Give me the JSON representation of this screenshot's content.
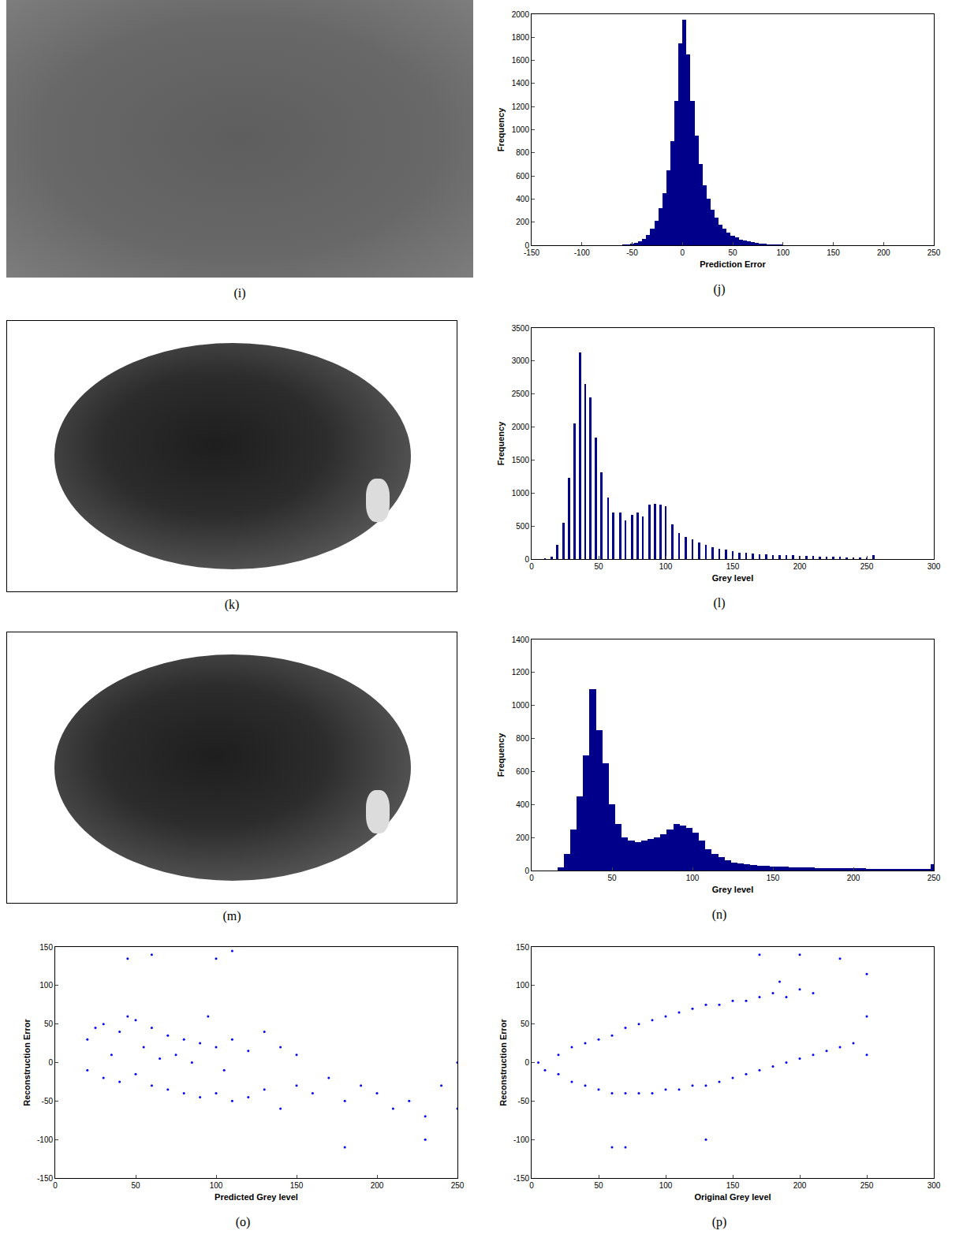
{
  "chart_data": [
    {
      "type": "image",
      "caption": "(i)"
    },
    {
      "type": "histogram",
      "caption": "(j)",
      "x_label": "Prediction Error",
      "y_label": "Frequency",
      "bins": [
        -60,
        -56,
        -52,
        -48,
        -44,
        -40,
        -36,
        -32,
        -28,
        -24,
        -20,
        -16,
        -12,
        -8,
        -4,
        0,
        4,
        8,
        12,
        16,
        20,
        24,
        28,
        32,
        36,
        40,
        44,
        48,
        52,
        56,
        60,
        64,
        68,
        72,
        76,
        80,
        84,
        88,
        92,
        96,
        100
      ],
      "values": [
        5,
        8,
        12,
        20,
        35,
        55,
        90,
        140,
        210,
        320,
        450,
        650,
        900,
        1250,
        1750,
        1950,
        1650,
        1250,
        950,
        700,
        520,
        400,
        310,
        240,
        180,
        140,
        110,
        85,
        65,
        50,
        40,
        32,
        25,
        20,
        15,
        12,
        10,
        8,
        6,
        5
      ],
      "color": "#00008b",
      "xlim": [
        -150,
        250
      ],
      "xticks": [
        -150,
        -100,
        -50,
        0,
        50,
        100,
        150,
        200,
        250
      ],
      "ylim": [
        0,
        2000
      ],
      "yticks": [
        0,
        200,
        400,
        600,
        800,
        1000,
        1200,
        1400,
        1600,
        1800,
        2000
      ],
      "grid": false
    },
    {
      "type": "image",
      "caption": "(k)"
    },
    {
      "type": "bar",
      "caption": "(l)",
      "x_label": "Grey level",
      "y_label": "Frequency",
      "x": [
        10,
        15,
        19,
        24,
        28,
        32,
        36,
        40,
        44,
        48,
        52,
        57,
        61,
        66,
        70,
        75,
        79,
        83,
        88,
        92,
        96,
        100,
        105,
        110,
        115,
        120,
        125,
        130,
        135,
        140,
        145,
        150,
        155,
        160,
        165,
        170,
        175,
        180,
        185,
        190,
        195,
        200,
        205,
        210,
        215,
        220,
        225,
        230,
        235,
        240,
        245,
        250,
        255
      ],
      "values": [
        10,
        30,
        220,
        550,
        1230,
        2050,
        3130,
        2650,
        2450,
        1840,
        1320,
        930,
        700,
        700,
        590,
        670,
        700,
        640,
        830,
        840,
        830,
        800,
        530,
        400,
        330,
        300,
        250,
        210,
        180,
        160,
        140,
        120,
        100,
        90,
        80,
        70,
        70,
        60,
        60,
        55,
        55,
        50,
        50,
        45,
        40,
        35,
        30,
        30,
        25,
        25,
        20,
        20,
        60
      ],
      "color": "#00008b",
      "xlim": [
        0,
        300
      ],
      "xticks": [
        0,
        50,
        100,
        150,
        200,
        250,
        300
      ],
      "ylim": [
        0,
        3500
      ],
      "yticks": [
        0,
        500,
        1000,
        1500,
        2000,
        2500,
        3000,
        3500
      ],
      "grid": false
    },
    {
      "type": "image",
      "caption": "(m)"
    },
    {
      "type": "histogram",
      "caption": "(n)",
      "x_label": "Grey level",
      "y_label": "Frequency",
      "bins": [
        16,
        20,
        24,
        28,
        32,
        36,
        40,
        44,
        48,
        52,
        56,
        60,
        64,
        68,
        72,
        76,
        80,
        84,
        88,
        92,
        96,
        100,
        104,
        108,
        112,
        116,
        120,
        124,
        128,
        132,
        136,
        140,
        144,
        148,
        152,
        156,
        160,
        164,
        168,
        172,
        176,
        180,
        184,
        188,
        192,
        196,
        200,
        204,
        208,
        212,
        216,
        220,
        224,
        228,
        232,
        236,
        240,
        244,
        248,
        252
      ],
      "values": [
        20,
        100,
        250,
        450,
        700,
        1100,
        850,
        650,
        400,
        280,
        200,
        180,
        170,
        180,
        190,
        200,
        220,
        250,
        280,
        270,
        260,
        230,
        180,
        130,
        100,
        80,
        60,
        50,
        45,
        40,
        35,
        30,
        30,
        25,
        25,
        22,
        20,
        20,
        18,
        18,
        16,
        15,
        15,
        14,
        14,
        13,
        12,
        12,
        11,
        11,
        10,
        10,
        10,
        9,
        9,
        9,
        8,
        8,
        40
      ],
      "color": "#00008b",
      "xlim": [
        0,
        250
      ],
      "xticks": [
        0,
        50,
        100,
        150,
        200,
        250
      ],
      "ylim": [
        0,
        1400
      ],
      "yticks": [
        0,
        200,
        400,
        600,
        800,
        1000,
        1200,
        1400
      ],
      "grid": false
    },
    {
      "type": "scatter",
      "caption": "(o)",
      "x_label": "Predicted Grey level",
      "y_label": "Reconstruction Error",
      "x": [
        20,
        20,
        25,
        30,
        30,
        35,
        40,
        40,
        45,
        50,
        50,
        55,
        60,
        60,
        65,
        70,
        70,
        75,
        80,
        80,
        85,
        90,
        90,
        95,
        100,
        100,
        105,
        110,
        110,
        120,
        120,
        130,
        130,
        140,
        140,
        150,
        150,
        160,
        170,
        180,
        190,
        200,
        210,
        220,
        230,
        240,
        250,
        250,
        45,
        60,
        100,
        110,
        180,
        230
      ],
      "values": [
        -10,
        30,
        45,
        -20,
        50,
        10,
        -25,
        40,
        60,
        -15,
        55,
        20,
        -30,
        45,
        5,
        -35,
        35,
        10,
        -40,
        30,
        0,
        -45,
        25,
        60,
        -40,
        20,
        -10,
        -50,
        30,
        -45,
        15,
        -35,
        40,
        -60,
        20,
        -30,
        10,
        -40,
        -20,
        -50,
        -30,
        -40,
        -60,
        -50,
        -70,
        -30,
        -60,
        0,
        135,
        140,
        135,
        145,
        -110,
        -100
      ],
      "color": "#0000ff",
      "marker": "dot",
      "xlim": [
        0,
        250
      ],
      "xticks": [
        0,
        50,
        100,
        150,
        200,
        250
      ],
      "ylim": [
        -150,
        150
      ],
      "yticks": [
        -150,
        -100,
        -50,
        0,
        50,
        100,
        150
      ],
      "grid": false
    },
    {
      "type": "scatter",
      "caption": "(p)",
      "x_label": "Original Grey level",
      "y_label": "Reconstruction Error",
      "x": [
        5,
        10,
        20,
        20,
        30,
        30,
        40,
        40,
        50,
        50,
        60,
        60,
        70,
        70,
        80,
        80,
        90,
        90,
        100,
        100,
        110,
        110,
        120,
        120,
        130,
        130,
        140,
        140,
        150,
        150,
        160,
        160,
        170,
        170,
        180,
        180,
        190,
        190,
        200,
        200,
        210,
        210,
        220,
        230,
        240,
        250,
        250,
        250,
        60,
        70,
        130,
        170,
        185,
        200,
        230
      ],
      "values": [
        0,
        -10,
        -15,
        10,
        -25,
        20,
        -30,
        25,
        -35,
        30,
        -40,
        35,
        -40,
        45,
        -40,
        50,
        -40,
        55,
        -35,
        60,
        -35,
        65,
        -30,
        70,
        -30,
        75,
        -25,
        75,
        -20,
        80,
        -15,
        80,
        -10,
        85,
        -5,
        90,
        0,
        85,
        5,
        95,
        10,
        90,
        15,
        20,
        25,
        10,
        60,
        115,
        -110,
        -110,
        -100,
        140,
        105,
        140,
        135
      ],
      "color": "#0000ff",
      "marker": "dot",
      "xlim": [
        0,
        300
      ],
      "xticks": [
        0,
        50,
        100,
        150,
        200,
        250,
        300
      ],
      "ylim": [
        -150,
        150
      ],
      "yticks": [
        -150,
        -100,
        -50,
        0,
        50,
        100,
        150
      ],
      "grid": false
    }
  ]
}
